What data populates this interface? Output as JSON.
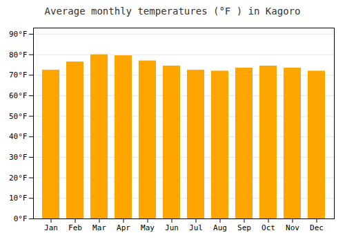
{
  "chart_data": {
    "type": "bar",
    "title": "Average monthly temperatures (°F ) in Kagoro",
    "categories": [
      "Jan",
      "Feb",
      "Mar",
      "Apr",
      "May",
      "Jun",
      "Jul",
      "Aug",
      "Sep",
      "Oct",
      "Nov",
      "Dec"
    ],
    "values": [
      72.5,
      76.5,
      80.0,
      79.5,
      77.0,
      74.5,
      72.5,
      72.0,
      73.5,
      74.5,
      73.5,
      72.0
    ],
    "color": "#FFA500",
    "ylim": [
      0,
      93
    ],
    "yticks": [
      {
        "value": 0,
        "label": "0°F"
      },
      {
        "value": 10,
        "label": "10°F"
      },
      {
        "value": 20,
        "label": "20°F"
      },
      {
        "value": 30,
        "label": "30°F"
      },
      {
        "value": 40,
        "label": "40°F"
      },
      {
        "value": 50,
        "label": "50°F"
      },
      {
        "value": 60,
        "label": "60°F"
      },
      {
        "value": 70,
        "label": "70°F"
      },
      {
        "value": 80,
        "label": "80°F"
      },
      {
        "value": 90,
        "label": "90°F"
      }
    ],
    "grid": true
  }
}
